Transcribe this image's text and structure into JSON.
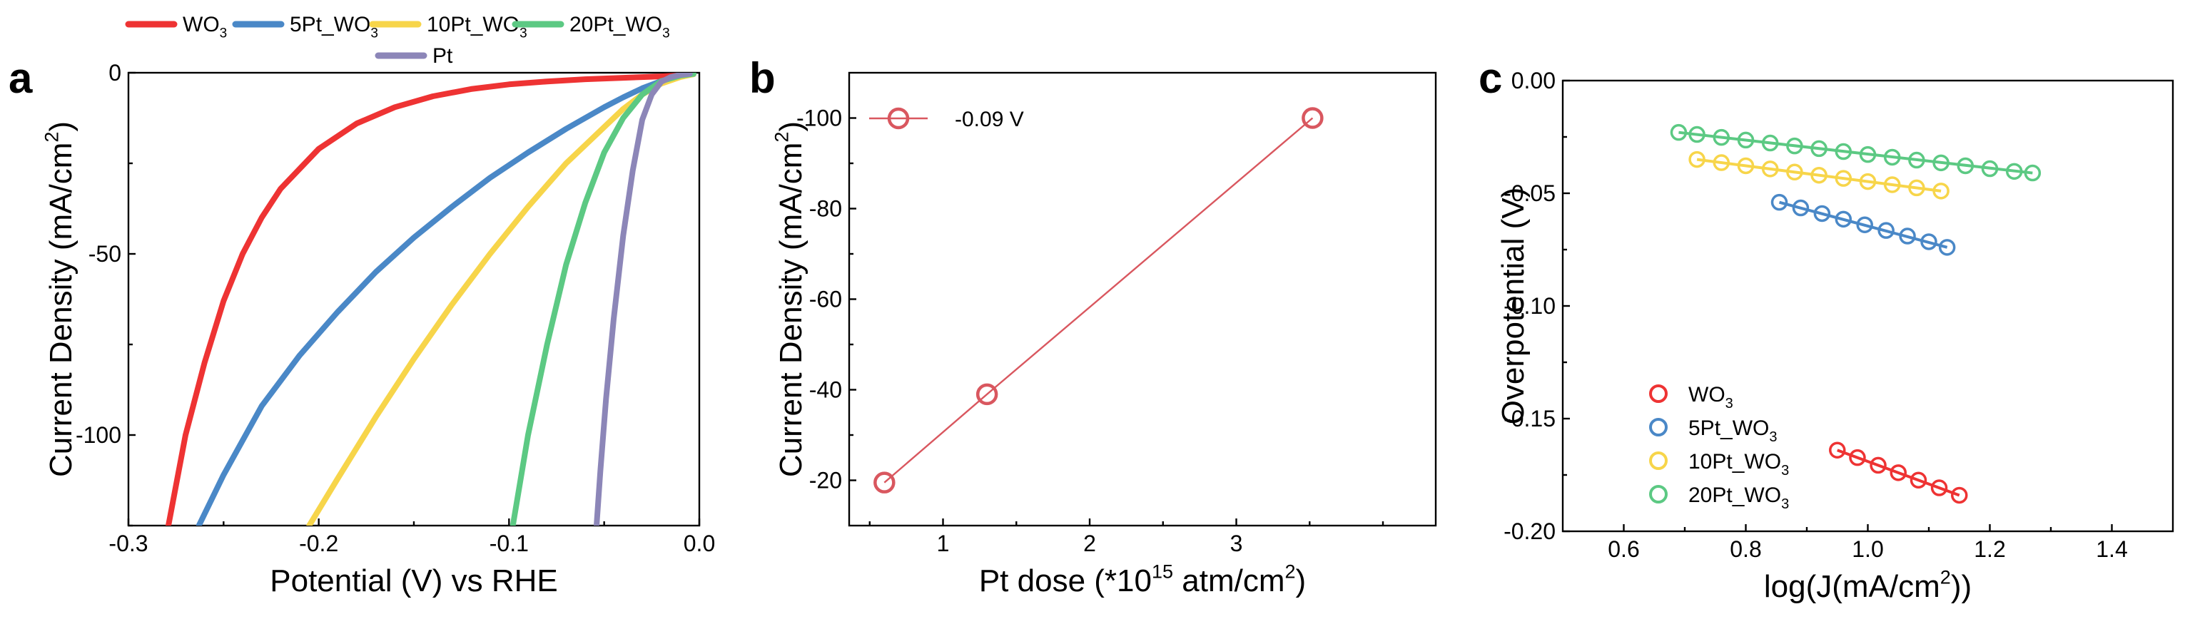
{
  "legend_top": [
    {
      "base": "WO",
      "sub": "3",
      "color": "#ee3333"
    },
    {
      "base": "5Pt_WO",
      "sub": "3",
      "color": "#4a88c7"
    },
    {
      "base": "10Pt_WO",
      "sub": "3",
      "color": "#f7d54a"
    },
    {
      "base": "20Pt_WO",
      "sub": "3",
      "color": "#5cc983"
    },
    {
      "base": "Pt",
      "sub": "",
      "color": "#8c86b8"
    }
  ],
  "chart_data": [
    {
      "panel": "a",
      "type": "line",
      "xlabel": "Potential (V) vs RHE",
      "ylabel": {
        "base": "Current Density (mA/cm",
        "sup": "2",
        "end": ")"
      },
      "xlim": [
        -0.3,
        0.0
      ],
      "ylim": [
        -125,
        0
      ],
      "xticks": [
        -0.3,
        -0.2,
        -0.1,
        0.0
      ],
      "xtick_labels": [
        "-0.3",
        "-0.2",
        "-0.1",
        "0.0"
      ],
      "yticks": [
        0,
        -50,
        -100
      ],
      "ytick_labels": [
        "0",
        "-50",
        "-100"
      ],
      "series": [
        {
          "name": "WO3",
          "color": "#ee3333",
          "x": [
            -0.279,
            -0.27,
            -0.26,
            -0.25,
            -0.24,
            -0.23,
            -0.22,
            -0.2,
            -0.18,
            -0.16,
            -0.14,
            -0.12,
            -0.1,
            -0.08,
            -0.06,
            -0.04,
            -0.02,
            -0.005
          ],
          "y": [
            -125,
            -100,
            -80,
            -63,
            -50,
            -40,
            -32,
            -21,
            -14,
            -9.5,
            -6.5,
            -4.5,
            -3.2,
            -2.4,
            -1.8,
            -1.4,
            -1.0,
            -0.6
          ]
        },
        {
          "name": "5Pt_WO3",
          "color": "#4a88c7",
          "x": [
            -0.263,
            -0.25,
            -0.23,
            -0.21,
            -0.19,
            -0.17,
            -0.15,
            -0.13,
            -0.11,
            -0.09,
            -0.07,
            -0.05,
            -0.04,
            -0.03,
            -0.02,
            -0.01,
            -0.003
          ],
          "y": [
            -125,
            -111,
            -92,
            -78,
            -66,
            -55,
            -45.5,
            -37,
            -29,
            -22,
            -15.5,
            -9.5,
            -6.8,
            -4.3,
            -2.3,
            -1.0,
            -0.4
          ]
        },
        {
          "name": "10Pt_WO3",
          "color": "#f7d54a",
          "x": [
            -0.205,
            -0.19,
            -0.17,
            -0.15,
            -0.13,
            -0.11,
            -0.09,
            -0.07,
            -0.06,
            -0.05,
            -0.04,
            -0.03,
            -0.02,
            -0.01,
            -0.003
          ],
          "y": [
            -125,
            -112,
            -95,
            -79,
            -64,
            -50,
            -37,
            -25,
            -20,
            -15,
            -10,
            -6,
            -3,
            -1.2,
            -0.4
          ]
        },
        {
          "name": "20Pt_WO3",
          "color": "#5cc983",
          "x": [
            -0.098,
            -0.09,
            -0.08,
            -0.07,
            -0.06,
            -0.05,
            -0.04,
            -0.03,
            -0.02,
            -0.01,
            -0.003
          ],
          "y": [
            -125,
            -100,
            -75,
            -53,
            -36,
            -22,
            -12.5,
            -6,
            -2.3,
            -0.8,
            -0.3
          ]
        },
        {
          "name": "Pt",
          "color": "#8c86b8",
          "x": [
            -0.054,
            -0.052,
            -0.049,
            -0.045,
            -0.04,
            -0.035,
            -0.03,
            -0.025,
            -0.02,
            -0.015,
            -0.01,
            -0.005
          ],
          "y": [
            -125,
            -110,
            -90,
            -68,
            -45,
            -27,
            -13,
            -6,
            -2.5,
            -1.2,
            -0.6,
            -0.3
          ]
        }
      ]
    },
    {
      "panel": "b",
      "type": "line",
      "xlabel": {
        "base": "Pt dose (*10",
        "sup": "15",
        "mid": " atm/cm",
        "sup2": "2",
        "end": ")"
      },
      "ylabel": {
        "base": "Current Density (mA/cm",
        "sup": "2",
        "end": ")"
      },
      "xlim": [
        0.36,
        4.36
      ],
      "ylim": [
        -10,
        -110
      ],
      "xticks": [
        1,
        2,
        3
      ],
      "xtick_labels": [
        "1",
        "2",
        "3"
      ],
      "yticks": [
        -20,
        -40,
        -60,
        -80,
        -100
      ],
      "ytick_labels": [
        "-20",
        "-40",
        "-60",
        "-80",
        "-100"
      ],
      "series": [
        {
          "name": "-0.09 V",
          "color": "#d9575f",
          "x": [
            0.6,
            1.3,
            3.52
          ],
          "y": [
            -19.5,
            -39,
            -100
          ]
        }
      ]
    },
    {
      "panel": "c",
      "type": "scatter",
      "xlabel": {
        "base": "log(J(mA/cm",
        "sup": "2",
        "end": "))"
      },
      "ylabel": "Overpotential (V)",
      "xlim": [
        0.5,
        1.5
      ],
      "ylim": [
        -0.2,
        0.0
      ],
      "xticks": [
        0.6,
        0.8,
        1.0,
        1.2,
        1.4
      ],
      "xtick_labels": [
        "0.6",
        "0.8",
        "1.0",
        "1.2",
        "1.4"
      ],
      "yticks": [
        0.0,
        -0.05,
        -0.1,
        -0.15,
        -0.2
      ],
      "ytick_labels": [
        "0.00",
        "-0.05",
        "-0.10",
        "-0.15",
        "-0.20"
      ],
      "series": [
        {
          "name": "WO3",
          "color": "#ee3333",
          "x": [
            0.95,
            0.983,
            1.017,
            1.05,
            1.083,
            1.117,
            1.15
          ],
          "y": [
            -0.164,
            -0.1673,
            -0.1707,
            -0.174,
            -0.1773,
            -0.1807,
            -0.184
          ]
        },
        {
          "name": "5Pt_WO3",
          "color": "#4a88c7",
          "x": [
            0.855,
            0.89,
            0.925,
            0.96,
            0.995,
            1.03,
            1.065,
            1.1,
            1.13
          ],
          "y": [
            -0.054,
            -0.0565,
            -0.059,
            -0.0615,
            -0.064,
            -0.0665,
            -0.069,
            -0.0715,
            -0.074
          ]
        },
        {
          "name": "10Pt_WO3",
          "color": "#f7d54a",
          "x": [
            0.72,
            0.76,
            0.8,
            0.84,
            0.88,
            0.92,
            0.96,
            1.0,
            1.04,
            1.08,
            1.12
          ],
          "y": [
            -0.035,
            -0.0364,
            -0.0378,
            -0.0392,
            -0.0406,
            -0.042,
            -0.0434,
            -0.0448,
            -0.0462,
            -0.0476,
            -0.049
          ]
        },
        {
          "name": "20Pt_WO3",
          "color": "#5cc983",
          "x": [
            0.69,
            0.72,
            0.76,
            0.8,
            0.84,
            0.88,
            0.92,
            0.96,
            1.0,
            1.04,
            1.08,
            1.12,
            1.16,
            1.2,
            1.24,
            1.27
          ],
          "y": [
            -0.023,
            -0.0239,
            -0.0252,
            -0.0264,
            -0.0277,
            -0.029,
            -0.0302,
            -0.0315,
            -0.0328,
            -0.034,
            -0.0353,
            -0.0365,
            -0.0378,
            -0.0391,
            -0.0403,
            -0.041
          ]
        }
      ]
    }
  ],
  "legend_b": [
    {
      "label": "-0.09 V",
      "color": "#d9575f"
    }
  ],
  "legend_c": [
    {
      "base": "WO",
      "sub": "3",
      "color": "#ee3333"
    },
    {
      "base": "5Pt_WO",
      "sub": "3",
      "color": "#4a88c7"
    },
    {
      "base": "10Pt_WO",
      "sub": "3",
      "color": "#f7d54a"
    },
    {
      "base": "20Pt_WO",
      "sub": "3",
      "color": "#5cc983"
    }
  ]
}
